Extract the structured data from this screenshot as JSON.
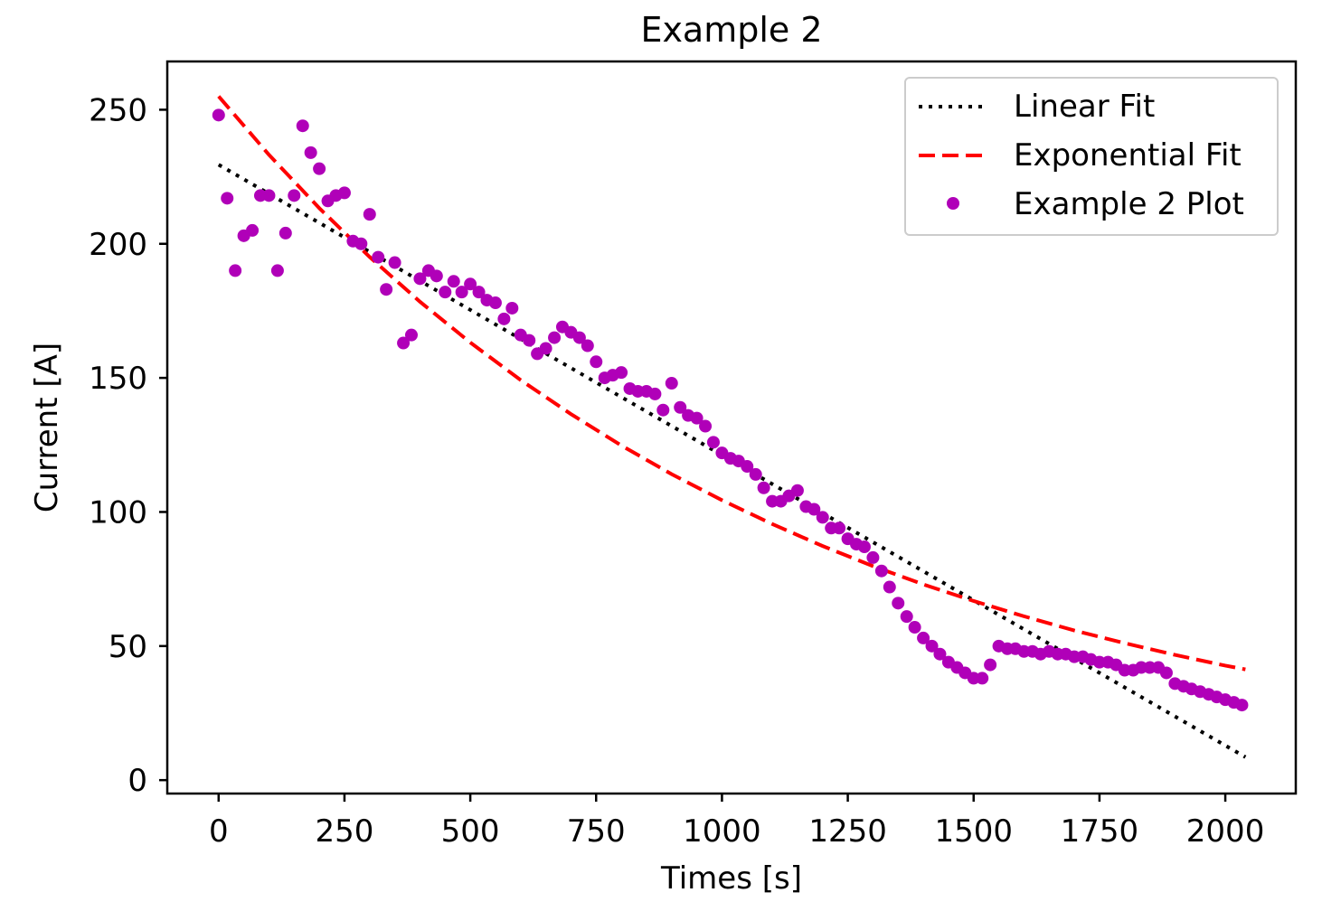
{
  "chart_data": {
    "type": "scatter",
    "title": "Example 2",
    "xlabel": "Times [s]",
    "ylabel": "Current [A]",
    "xlim": [
      -102,
      2140
    ],
    "ylim": [
      -5,
      268
    ],
    "xticks": [
      0,
      250,
      500,
      750,
      1000,
      1250,
      1500,
      1750,
      2000
    ],
    "yticks": [
      0,
      50,
      100,
      150,
      200,
      250
    ],
    "grid": false,
    "legend": {
      "position": "top-right",
      "entries": [
        "Linear Fit",
        "Exponential Fit",
        "Example 2 Plot"
      ]
    },
    "series": [
      {
        "name": "Linear Fit",
        "kind": "line",
        "style": "dotted",
        "color": "#000000",
        "x": [
          0,
          2040
        ],
        "y": [
          229.5,
          8.6
        ]
      },
      {
        "name": "Exponential Fit",
        "kind": "line",
        "style": "dashed",
        "color": "#ff0000",
        "x": [
          0,
          100,
          200,
          300,
          400,
          500,
          600,
          700,
          800,
          900,
          1000,
          1100,
          1200,
          1300,
          1400,
          1500,
          1600,
          1700,
          1800,
          1900,
          2000,
          2040
        ],
        "y": [
          255.0,
          233.2,
          213.3,
          195.1,
          178.4,
          163.2,
          149.2,
          136.5,
          124.8,
          114.1,
          104.4,
          95.5,
          87.3,
          79.8,
          73.0,
          66.8,
          61.1,
          55.8,
          51.1,
          46.7,
          42.7,
          41.3
        ]
      },
      {
        "name": "Example 2 Plot",
        "kind": "scatter",
        "color": "#b000b8",
        "x": [
          0,
          17,
          33,
          50,
          67,
          83,
          100,
          117,
          133,
          150,
          167,
          183,
          200,
          217,
          233,
          250,
          267,
          283,
          300,
          317,
          333,
          350,
          367,
          383,
          400,
          417,
          433,
          450,
          467,
          483,
          500,
          517,
          533,
          550,
          567,
          583,
          600,
          617,
          633,
          650,
          667,
          683,
          700,
          717,
          733,
          750,
          767,
          783,
          800,
          817,
          833,
          850,
          867,
          883,
          900,
          917,
          933,
          950,
          967,
          983,
          1000,
          1017,
          1033,
          1050,
          1067,
          1083,
          1100,
          1117,
          1133,
          1150,
          1167,
          1183,
          1200,
          1217,
          1233,
          1250,
          1267,
          1283,
          1300,
          1317,
          1333,
          1350,
          1367,
          1383,
          1400,
          1417,
          1433,
          1450,
          1467,
          1483,
          1500,
          1517,
          1533,
          1550,
          1567,
          1583,
          1600,
          1617,
          1633,
          1650,
          1667,
          1683,
          1700,
          1717,
          1733,
          1750,
          1767,
          1783,
          1800,
          1817,
          1833,
          1850,
          1867,
          1883,
          1900,
          1917,
          1933,
          1950,
          1967,
          1983,
          2000,
          2017,
          2033
        ],
        "y": [
          248,
          217,
          190,
          203,
          205,
          218,
          218,
          190,
          204,
          218,
          244,
          234,
          228,
          216,
          218,
          219,
          201,
          200,
          211,
          195,
          183,
          193,
          163,
          166,
          187,
          190,
          188,
          182,
          186,
          182,
          185,
          182,
          179,
          178,
          172,
          176,
          166,
          164,
          159,
          161,
          165,
          169,
          167,
          165,
          162,
          156,
          150,
          151,
          152,
          146,
          145,
          145,
          144,
          138,
          148,
          139,
          136,
          135,
          132,
          126,
          122,
          120,
          119,
          117,
          114,
          109,
          104,
          104,
          106,
          108,
          102,
          101,
          98,
          94,
          94,
          90,
          88,
          87,
          83,
          78,
          72,
          66,
          61,
          57,
          53,
          50,
          47,
          44,
          42,
          40,
          38,
          38,
          43,
          50,
          49,
          49,
          48,
          48,
          47,
          48,
          47,
          47,
          46,
          46,
          45,
          44,
          44,
          43,
          41,
          41,
          42,
          42,
          42,
          40,
          36,
          35,
          34,
          33,
          32,
          31,
          30,
          29,
          28
        ]
      }
    ]
  }
}
